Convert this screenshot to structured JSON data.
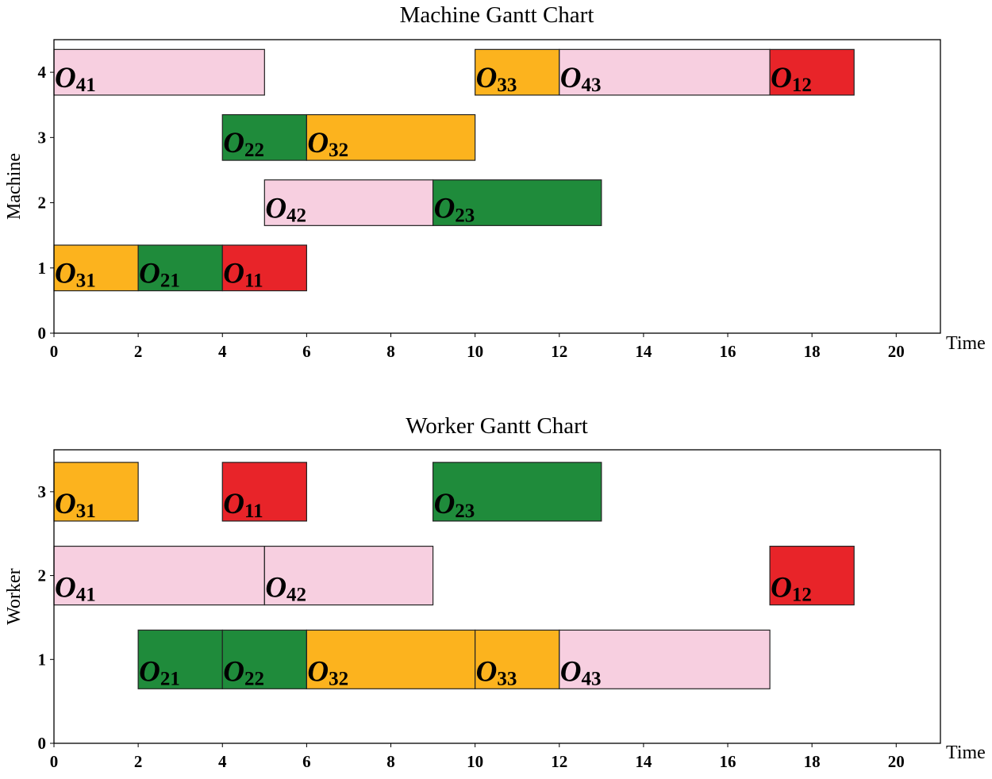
{
  "colors": {
    "pink": "#f7cfe0",
    "orange": "#fcb31e",
    "green": "#1f8b3b",
    "red": "#e82429"
  },
  "chart_data": [
    {
      "type": "gantt",
      "title": "Machine Gantt Chart",
      "xlabel": "Time",
      "ylabel": "Machine",
      "xlim": [
        0,
        21.05
      ],
      "ylim": [
        0,
        4.5
      ],
      "xticks": [
        0,
        2,
        4,
        6,
        8,
        10,
        12,
        14,
        16,
        18,
        20
      ],
      "yticks": [
        0,
        1,
        2,
        3,
        4
      ],
      "tasks": [
        {
          "label": "O41",
          "row": 4,
          "start": 0,
          "end": 5,
          "color": "pink"
        },
        {
          "label": "O33",
          "row": 4,
          "start": 10,
          "end": 12,
          "color": "orange"
        },
        {
          "label": "O43",
          "row": 4,
          "start": 12,
          "end": 17,
          "color": "pink"
        },
        {
          "label": "O12",
          "row": 4,
          "start": 17,
          "end": 19,
          "color": "red"
        },
        {
          "label": "O22",
          "row": 3,
          "start": 4,
          "end": 6,
          "color": "green"
        },
        {
          "label": "O32",
          "row": 3,
          "start": 6,
          "end": 10,
          "color": "orange"
        },
        {
          "label": "O42",
          "row": 2,
          "start": 5,
          "end": 9,
          "color": "pink"
        },
        {
          "label": "O23",
          "row": 2,
          "start": 9,
          "end": 13,
          "color": "green"
        },
        {
          "label": "O31",
          "row": 1,
          "start": 0,
          "end": 2,
          "color": "orange"
        },
        {
          "label": "O21",
          "row": 1,
          "start": 2,
          "end": 4,
          "color": "green"
        },
        {
          "label": "O11",
          "row": 1,
          "start": 4,
          "end": 6,
          "color": "red"
        }
      ]
    },
    {
      "type": "gantt",
      "title": "Worker Gantt Chart",
      "xlabel": "Time",
      "ylabel": "Worker",
      "xlim": [
        0,
        21.05
      ],
      "ylim": [
        0,
        3.5
      ],
      "xticks": [
        0,
        2,
        4,
        6,
        8,
        10,
        12,
        14,
        16,
        18,
        20
      ],
      "yticks": [
        0,
        1,
        2,
        3
      ],
      "tasks": [
        {
          "label": "O31",
          "row": 3,
          "start": 0,
          "end": 2,
          "color": "orange"
        },
        {
          "label": "O11",
          "row": 3,
          "start": 4,
          "end": 6,
          "color": "red"
        },
        {
          "label": "O23",
          "row": 3,
          "start": 9,
          "end": 13,
          "color": "green"
        },
        {
          "label": "O41",
          "row": 2,
          "start": 0,
          "end": 5,
          "color": "pink"
        },
        {
          "label": "O42",
          "row": 2,
          "start": 5,
          "end": 9,
          "color": "pink"
        },
        {
          "label": "O12",
          "row": 2,
          "start": 17,
          "end": 19,
          "color": "red"
        },
        {
          "label": "O21",
          "row": 1,
          "start": 2,
          "end": 4,
          "color": "green"
        },
        {
          "label": "O22",
          "row": 1,
          "start": 4,
          "end": 6,
          "color": "green"
        },
        {
          "label": "O32",
          "row": 1,
          "start": 6,
          "end": 10,
          "color": "orange"
        },
        {
          "label": "O33",
          "row": 1,
          "start": 10,
          "end": 12,
          "color": "orange"
        },
        {
          "label": "O43",
          "row": 1,
          "start": 12,
          "end": 17,
          "color": "pink"
        }
      ]
    }
  ]
}
